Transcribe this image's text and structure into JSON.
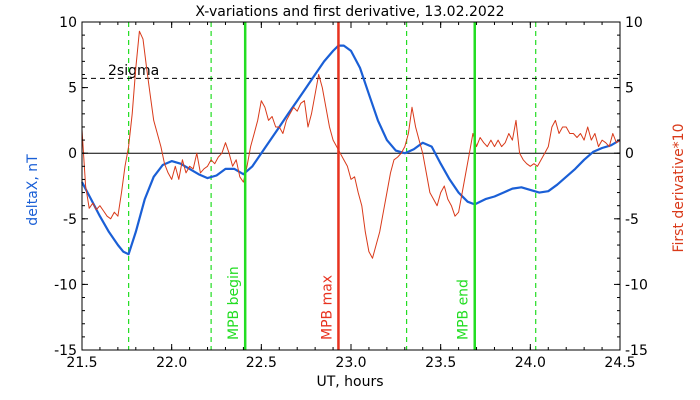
{
  "chart_data": {
    "type": "line",
    "title": "X-variations and first derivative, 13.02.2022",
    "xlabel": "UT, hours",
    "ylabel_left": "deltaX, nT",
    "ylabel_right": "First derivative*10",
    "xlim": [
      21.5,
      24.5
    ],
    "ylim_left": [
      -15,
      10
    ],
    "ylim_right": [
      -15,
      10
    ],
    "x_ticks": [
      "21.5",
      "22.0",
      "22.5",
      "23.0",
      "23.5",
      "24.0",
      "24.5"
    ],
    "y_ticks_left": [
      "10",
      "5",
      "0",
      "-5",
      "-10",
      "-15"
    ],
    "y_ticks_right": [
      "10",
      "5",
      "0",
      "-5",
      "-10",
      "-15"
    ],
    "grid": false,
    "colors": {
      "deltaX": "#1a5fd6",
      "derivative": "#d93a1a",
      "mpb_begin_end": "#22dd22",
      "mpb_max": "#e8321f",
      "dashed_green": "#22dd22",
      "sigma_line": "#000000",
      "zero_line": "#000000"
    },
    "threshold": {
      "label": "2sigma",
      "value": 5.7
    },
    "zero_line": 0,
    "markers": [
      {
        "label": "MPB begin",
        "x": 22.41,
        "style": "solid",
        "color_key": "mpb_begin_end"
      },
      {
        "label": "MPB max",
        "x": 22.93,
        "style": "solid",
        "color_key": "mpb_max"
      },
      {
        "label": "MPB end",
        "x": 23.69,
        "style": "solid",
        "color_key": "mpb_begin_end"
      }
    ],
    "dashed_markers": [
      21.76,
      22.22,
      23.31,
      24.03
    ],
    "series": [
      {
        "key": "deltaX",
        "axis": "left",
        "x": [
          21.5,
          21.55,
          21.6,
          21.65,
          21.7,
          21.73,
          21.76,
          21.8,
          21.85,
          21.9,
          21.95,
          22.0,
          22.05,
          22.1,
          22.15,
          22.2,
          22.25,
          22.3,
          22.35,
          22.4,
          22.45,
          22.5,
          22.55,
          22.6,
          22.65,
          22.7,
          22.75,
          22.8,
          22.85,
          22.9,
          22.93,
          22.96,
          23.0,
          23.05,
          23.1,
          23.15,
          23.2,
          23.25,
          23.3,
          23.35,
          23.4,
          23.45,
          23.5,
          23.55,
          23.6,
          23.65,
          23.69,
          23.75,
          23.8,
          23.85,
          23.9,
          23.95,
          24.0,
          24.05,
          24.1,
          24.15,
          24.2,
          24.25,
          24.3,
          24.35,
          24.4,
          24.45,
          24.5
        ],
        "y": [
          -2.2,
          -3.5,
          -4.8,
          -6.0,
          -7.0,
          -7.5,
          -7.7,
          -6.0,
          -3.5,
          -1.8,
          -0.9,
          -0.6,
          -0.8,
          -1.2,
          -1.6,
          -1.9,
          -1.7,
          -1.2,
          -1.2,
          -1.6,
          -1.0,
          0.0,
          1.0,
          2.0,
          3.0,
          4.0,
          5.0,
          6.0,
          7.0,
          7.8,
          8.2,
          8.2,
          7.8,
          6.5,
          4.5,
          2.5,
          1.0,
          0.2,
          0.0,
          0.3,
          0.8,
          0.5,
          -0.8,
          -2.0,
          -3.0,
          -3.7,
          -3.9,
          -3.5,
          -3.3,
          -3.0,
          -2.7,
          -2.6,
          -2.8,
          -3.0,
          -2.9,
          -2.4,
          -1.8,
          -1.2,
          -0.5,
          0.1,
          0.4,
          0.6,
          1.0
        ]
      },
      {
        "key": "derivative",
        "axis": "right",
        "x": [
          21.5,
          21.52,
          21.54,
          21.56,
          21.58,
          21.6,
          21.62,
          21.64,
          21.66,
          21.68,
          21.7,
          21.72,
          21.74,
          21.76,
          21.78,
          21.8,
          21.82,
          21.84,
          21.86,
          21.88,
          21.9,
          21.92,
          21.94,
          21.96,
          21.98,
          22.0,
          22.02,
          22.04,
          22.06,
          22.08,
          22.1,
          22.12,
          22.14,
          22.16,
          22.18,
          22.2,
          22.22,
          22.24,
          22.26,
          22.28,
          22.3,
          22.32,
          22.34,
          22.36,
          22.38,
          22.4,
          22.42,
          22.44,
          22.46,
          22.48,
          22.5,
          22.52,
          22.54,
          22.56,
          22.58,
          22.6,
          22.62,
          22.64,
          22.66,
          22.68,
          22.7,
          22.72,
          22.74,
          22.76,
          22.78,
          22.8,
          22.82,
          22.84,
          22.86,
          22.88,
          22.9,
          22.92,
          22.94,
          22.96,
          22.98,
          23.0,
          23.02,
          23.04,
          23.06,
          23.08,
          23.1,
          23.12,
          23.14,
          23.16,
          23.18,
          23.2,
          23.22,
          23.24,
          23.26,
          23.28,
          23.3,
          23.32,
          23.34,
          23.36,
          23.38,
          23.4,
          23.42,
          23.44,
          23.46,
          23.48,
          23.5,
          23.52,
          23.54,
          23.56,
          23.58,
          23.6,
          23.62,
          23.64,
          23.66,
          23.68,
          23.7,
          23.72,
          23.74,
          23.76,
          23.78,
          23.8,
          23.82,
          23.84,
          23.86,
          23.88,
          23.9,
          23.92,
          23.94,
          23.96,
          23.98,
          24.0,
          24.02,
          24.04,
          24.06,
          24.08,
          24.1,
          24.12,
          24.14,
          24.16,
          24.18,
          24.2,
          24.22,
          24.24,
          24.26,
          24.28,
          24.3,
          24.32,
          24.34,
          24.36,
          24.38,
          24.4,
          24.42,
          24.44,
          24.46,
          24.48,
          24.5
        ],
        "y": [
          1.8,
          -2.5,
          -4.2,
          -3.8,
          -4.3,
          -4.0,
          -4.4,
          -4.8,
          -5.0,
          -4.5,
          -4.8,
          -3.0,
          -1.0,
          0.5,
          3.0,
          6.5,
          9.3,
          8.7,
          6.5,
          4.5,
          2.5,
          1.5,
          0.5,
          -0.8,
          -1.5,
          -2.0,
          -1.0,
          -2.0,
          -0.5,
          -1.5,
          -1.0,
          -1.2,
          0.0,
          -1.5,
          -1.2,
          -1.0,
          -0.5,
          -0.8,
          -0.3,
          0.0,
          0.8,
          0.0,
          -1.0,
          -0.5,
          -1.8,
          -2.2,
          -1.0,
          0.5,
          1.5,
          2.5,
          4.0,
          3.5,
          2.5,
          2.8,
          2.0,
          2.0,
          1.5,
          2.5,
          3.0,
          3.5,
          3.2,
          3.8,
          4.0,
          2.0,
          3.0,
          4.5,
          6.0,
          5.0,
          3.5,
          2.0,
          1.0,
          0.5,
          0.0,
          -0.5,
          -1.0,
          -2.0,
          -1.8,
          -3.0,
          -4.0,
          -6.0,
          -7.5,
          -8.0,
          -7.0,
          -6.0,
          -4.5,
          -3.0,
          -1.5,
          -0.5,
          -0.3,
          0.0,
          0.5,
          1.5,
          3.5,
          2.0,
          1.0,
          0.0,
          -1.5,
          -3.0,
          -3.5,
          -4.0,
          -3.0,
          -2.5,
          -3.5,
          -4.0,
          -4.8,
          -4.5,
          -3.0,
          -1.5,
          0.0,
          1.5,
          0.5,
          1.2,
          0.8,
          0.5,
          1.0,
          0.5,
          1.0,
          0.5,
          0.8,
          1.5,
          1.0,
          2.5,
          0.0,
          -0.5,
          -0.8,
          -1.0,
          -0.8,
          -1.0,
          -0.5,
          0.0,
          0.5,
          2.0,
          2.5,
          1.5,
          2.0,
          2.0,
          1.5,
          1.5,
          1.2,
          1.5,
          1.0,
          2.0,
          1.0,
          1.5,
          0.5,
          1.0,
          0.8,
          0.5,
          1.5,
          0.8,
          1.0
        ]
      }
    ]
  }
}
